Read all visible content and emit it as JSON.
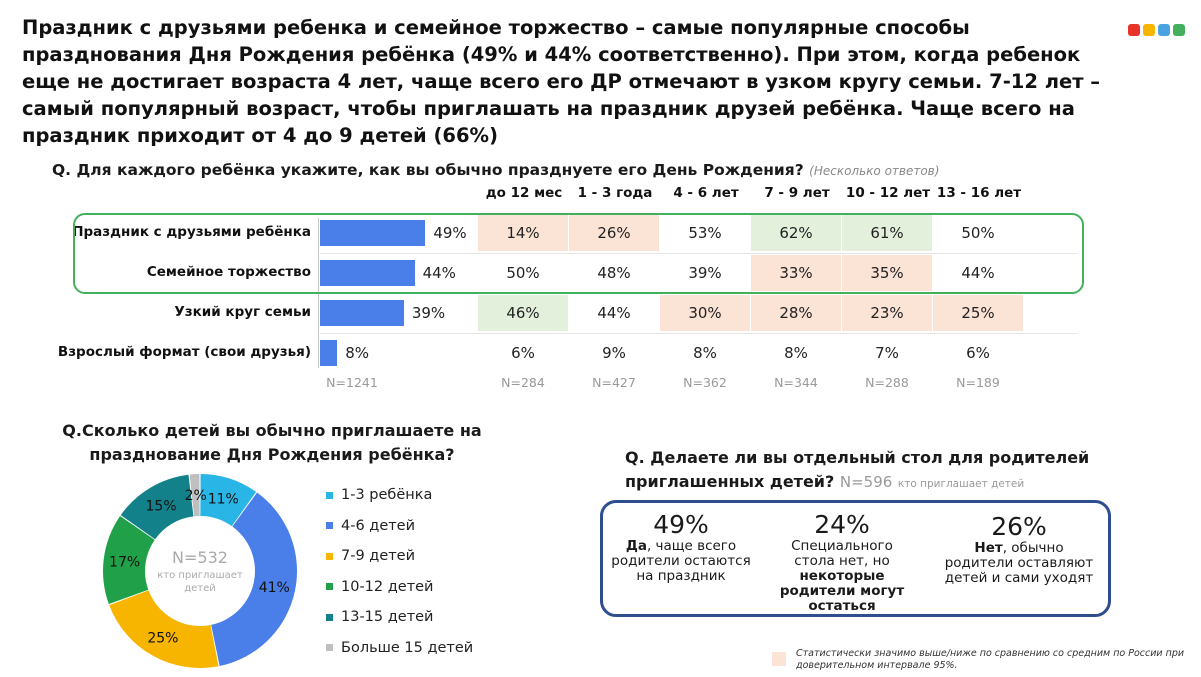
{
  "headline": "Праздник  с друзьями ребенка и семейное торжество  – самые популярные способы празднования Дня Рождения ребёнка (49% и 44% соответственно). При этом, когда ребенок еще не достигает возраста 4 лет, чаще всего его ДР отмечают в узком кругу семьи. 7-12 лет – самый популярный возраст, чтобы приглашать на праздник друзей ребёнка. Чаще всего на праздник приходит от 4 до 9 детей (66%)",
  "logo_colors": [
    "#e8332b",
    "#f7b500",
    "#4aa3df",
    "#43b05c"
  ],
  "colors": {
    "bar": "#4a7ee8",
    "cell_green": "#e3f1dc",
    "cell_peach": "#fbe3d5",
    "highlight_box": "#43b05c",
    "stat_box": "#2e4e8e"
  },
  "chart_data": [
    {
      "type": "bar",
      "question": "Q. Для каждого ребёнка укажите, как вы обычно празднуете его День Рождения?",
      "question_note": "(Несколько ответов)",
      "categories": [
        "Праздник с друзьями  ребёнка",
        "Семейное торжество",
        "Узкий круг семьи",
        "Взрослый формат (свои друзья)"
      ],
      "values": [
        49,
        44,
        39,
        8
      ],
      "value_labels": [
        "49%",
        "44%",
        "39%",
        "8%"
      ],
      "total_n": "N=1241",
      "xlim": [
        0,
        100
      ],
      "age_table": {
        "columns": [
          "до 12 мес",
          "1 - 3 года",
          "4 - 6 лет",
          "7 - 9 лет",
          "10 - 12 лет",
          "13 - 16 лет"
        ],
        "rows": [
          [
            "14%",
            "26%",
            "53%",
            "62%",
            "61%",
            "50%"
          ],
          [
            "50%",
            "48%",
            "39%",
            "33%",
            "35%",
            "44%"
          ],
          [
            "46%",
            "44%",
            "30%",
            "28%",
            "23%",
            "25%"
          ],
          [
            "6%",
            "9%",
            "8%",
            "8%",
            "7%",
            "6%"
          ]
        ],
        "highlight": [
          [
            "peach",
            "peach",
            "none",
            "green",
            "green",
            "none"
          ],
          [
            "none",
            "none",
            "none",
            "peach",
            "peach",
            "none"
          ],
          [
            "green",
            "none",
            "peach",
            "peach",
            "peach",
            "peach"
          ],
          [
            "none",
            "none",
            "none",
            "none",
            "none",
            "none"
          ]
        ],
        "n": [
          "N=284",
          "N=427",
          "N=362",
          "N=344",
          "N=288",
          "N=189"
        ]
      }
    },
    {
      "type": "pie",
      "question": "Q.Сколько детей вы обычно приглашаете на празднование Дня Рождения ребёнка?",
      "center_n": "N=532",
      "center_note": "кто приглашает детей",
      "labels": [
        "1-3 ребёнка",
        "4-6 детей",
        "7-9 детей",
        "10-12 детей",
        "13-15 детей",
        "Больше 15 детей"
      ],
      "values": [
        11,
        41,
        25,
        17,
        15,
        2
      ],
      "value_labels": [
        "11%",
        "41%",
        "25%",
        "17%",
        "15%",
        "2%"
      ],
      "colors": [
        "#29b6e6",
        "#4a7ee8",
        "#f7b500",
        "#21a04a",
        "#13818a",
        "#bfbfbf"
      ]
    }
  ],
  "q3": {
    "question": "Q. Делаете ли вы отдельный стол для родителей приглашенных детей?",
    "n": "N=596",
    "n_note": "кто приглашает детей",
    "stats": [
      {
        "pct": "49%",
        "bold": "Да",
        "text": ", чаще всего родители остаются на праздник"
      },
      {
        "pct": "24%",
        "text": "Специального стола нет, но ",
        "bold": "некоторые родители могут остаться"
      },
      {
        "pct": "26%",
        "bold": "Нет",
        "text": ", обычно родители оставляют детей и сами уходят"
      }
    ]
  },
  "footnote": "Статистически значимо выше/ниже по сравнению со средним по России при доверительном интервале 95%."
}
